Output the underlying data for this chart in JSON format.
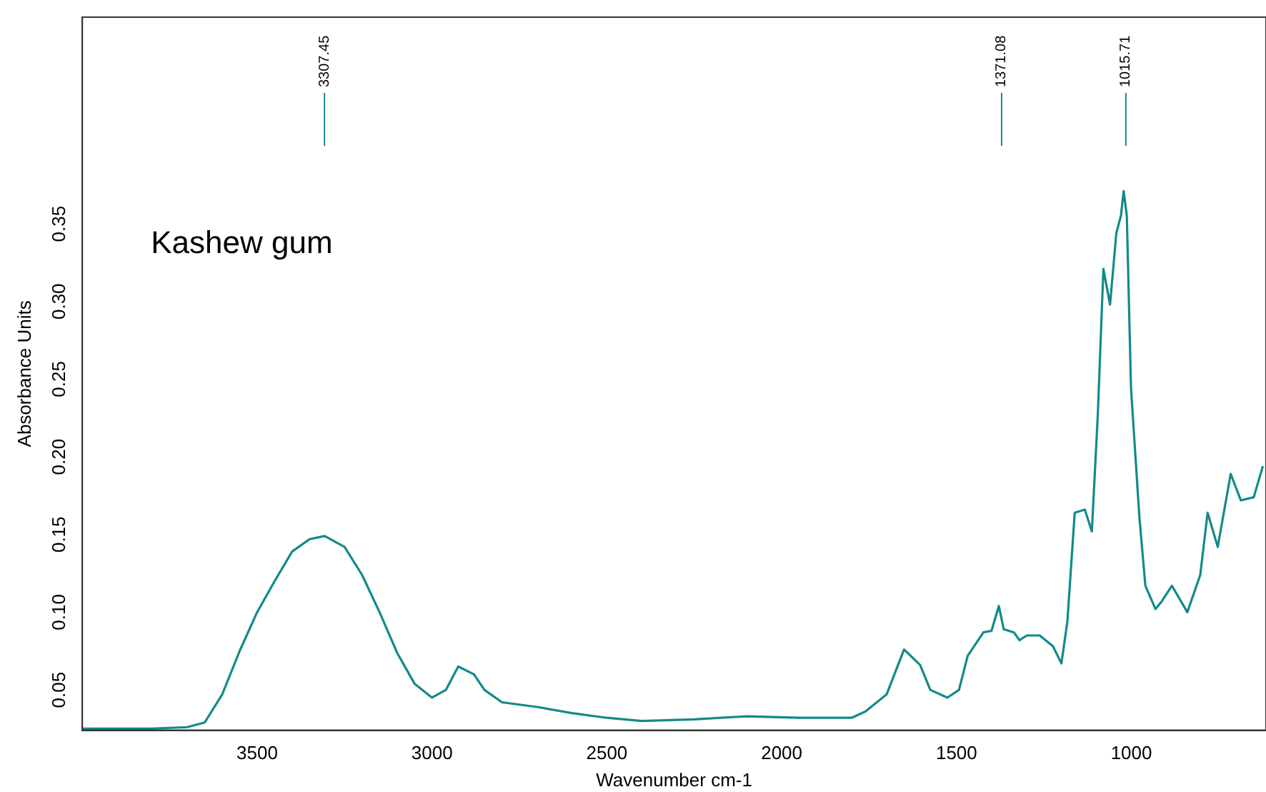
{
  "chart_data": {
    "type": "line",
    "xlabel": "Wavenumber cm-1",
    "ylabel": "Absorbance Units",
    "xlim": [
      4000,
      615
    ],
    "ylim": [
      0.024,
      0.483
    ],
    "xticks": [
      3500,
      3000,
      2500,
      2000,
      1500,
      1000
    ],
    "yticks": [
      0.05,
      {
        "value": 0.1,
        "label": "0.10"
      },
      0.15,
      {
        "value": 0.2,
        "label": "0.20"
      },
      0.25,
      {
        "value": 0.3,
        "label": "0.30"
      },
      0.35
    ],
    "grid": false,
    "legend": false,
    "marker": "none",
    "line_style": "solid",
    "annotations": [
      "Kashew gum"
    ],
    "ref_lines": [
      {
        "axis": "x",
        "value": 3307.45,
        "label": "3307.45",
        "color": "#138a8a"
      },
      {
        "axis": "x",
        "value": 1371.08,
        "label": "1371.08",
        "color": "#138a8a"
      },
      {
        "axis": "x",
        "value": 1015.71,
        "label": "1015.71",
        "color": "#138a8a"
      }
    ],
    "series": [
      {
        "color": "#138a8a",
        "x": [
          4000,
          3900,
          3800,
          3700,
          3650,
          3600,
          3550,
          3500,
          3450,
          3400,
          3350,
          3307,
          3250,
          3200,
          3150,
          3100,
          3050,
          3000,
          2960,
          2925,
          2880,
          2850,
          2800,
          2700,
          2600,
          2500,
          2400,
          2250,
          2100,
          1950,
          1800,
          1761,
          1700,
          1650,
          1604,
          1575,
          1526,
          1493,
          1468,
          1423,
          1400,
          1379,
          1365,
          1336,
          1320,
          1299,
          1262,
          1224,
          1200,
          1183,
          1162,
          1133,
          1113,
          1096,
          1080,
          1061,
          1043,
          1030,
          1022,
          1013,
          1001,
          977,
          960,
          931,
          913,
          884,
          840,
          803,
          782,
          753,
          716,
          687,
          650,
          624
        ],
        "values": [
          0.025,
          0.025,
          0.025,
          0.026,
          0.029,
          0.047,
          0.075,
          0.1,
          0.12,
          0.139,
          0.147,
          0.149,
          0.142,
          0.124,
          0.1,
          0.074,
          0.054,
          0.045,
          0.05,
          0.065,
          0.06,
          0.05,
          0.042,
          0.039,
          0.035,
          0.032,
          0.03,
          0.031,
          0.033,
          0.032,
          0.032,
          0.036,
          0.047,
          0.076,
          0.066,
          0.05,
          0.045,
          0.05,
          0.072,
          0.087,
          0.088,
          0.104,
          0.089,
          0.087,
          0.082,
          0.085,
          0.085,
          0.078,
          0.067,
          0.094,
          0.164,
          0.166,
          0.152,
          0.227,
          0.321,
          0.298,
          0.344,
          0.355,
          0.371,
          0.355,
          0.244,
          0.161,
          0.117,
          0.102,
          0.107,
          0.117,
          0.1,
          0.124,
          0.164,
          0.142,
          0.189,
          0.172,
          0.174,
          0.194
        ]
      }
    ]
  }
}
